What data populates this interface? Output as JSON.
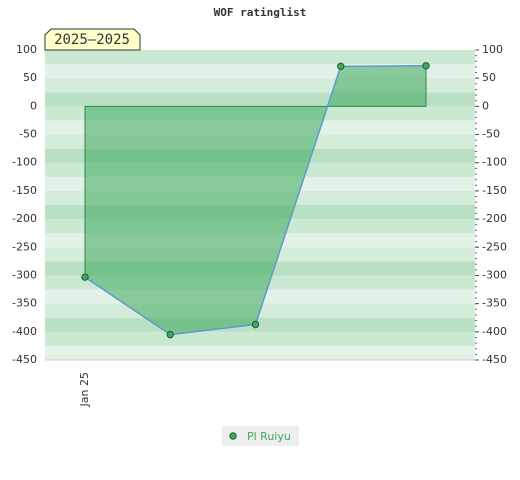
{
  "chart_data": {
    "type": "area",
    "title": "WOF ratinglist",
    "annotation": "2025–2025",
    "categories": [
      "Jan 25",
      null,
      null,
      null,
      null
    ],
    "series": [
      {
        "name": "Pl Ruiyu",
        "color": "#3faa5f",
        "values": [
          -303,
          -405,
          -387,
          71,
          72
        ]
      }
    ],
    "ylim": [
      -450,
      100
    ],
    "yticks": [
      -450,
      -400,
      -350,
      -300,
      -250,
      -200,
      -150,
      -100,
      -50,
      0,
      50,
      100
    ],
    "grid": true,
    "legend": "bottom"
  }
}
